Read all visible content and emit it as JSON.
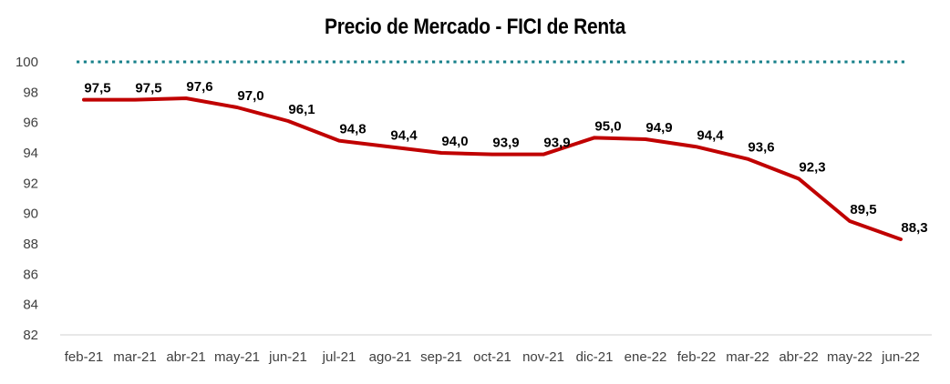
{
  "page": {
    "background_color": "#FFFFFF"
  },
  "chart_data": {
    "type": "line",
    "title": "Precio de Mercado - FICI de Renta",
    "categories": [
      "feb-21",
      "mar-21",
      "abr-21",
      "may-21",
      "jun-21",
      "jul-21",
      "ago-21",
      "sep-21",
      "oct-21",
      "nov-21",
      "dic-21",
      "ene-22",
      "feb-22",
      "mar-22",
      "abr-22",
      "may-22",
      "jun-22"
    ],
    "series": [
      {
        "name": "precio-de-mercado",
        "values": [
          97.5,
          97.5,
          97.6,
          97.0,
          96.1,
          94.8,
          94.4,
          94.0,
          93.9,
          93.9,
          95.0,
          94.9,
          94.4,
          93.6,
          92.3,
          89.5,
          88.3
        ],
        "data_labels": [
          "97,5",
          "97,5",
          "97,6",
          "97,0",
          "96,1",
          "94,8",
          "94,4",
          "94,0",
          "93,9",
          "93,9",
          "95,0",
          "94,9",
          "94,4",
          "93,6",
          "92,3",
          "89,5",
          "88,3"
        ],
        "color": "#C00000",
        "style": "solid"
      },
      {
        "name": "referencia-100",
        "constant_value": 100,
        "color": "#17808A",
        "style": "dotted"
      }
    ],
    "xlabel": "",
    "ylabel": "",
    "ylim": [
      82,
      100
    ],
    "yticks": [
      100,
      98,
      96,
      94,
      92,
      90,
      88,
      86,
      84,
      82
    ],
    "grid": false,
    "legend_position": "none",
    "axis_line_color": "#D9D9D9",
    "tick_text_color": "#404040",
    "data_label_color": "#000000"
  }
}
